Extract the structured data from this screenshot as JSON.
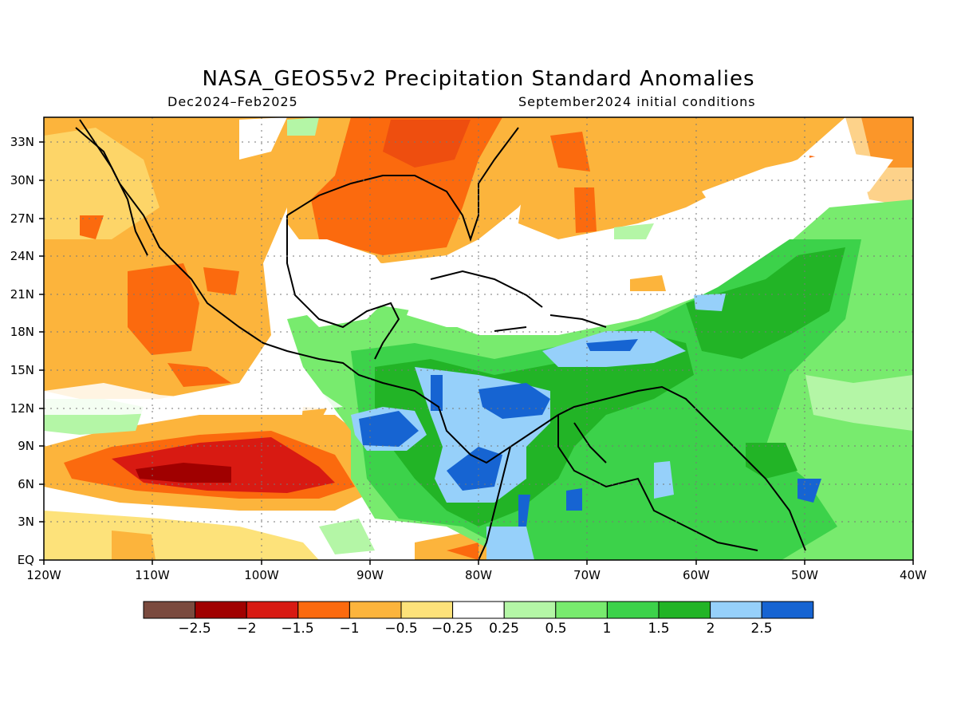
{
  "title": "NASA_GEOS5v2 Precipitation Standard Anomalies",
  "subtitle_left": "Dec2024–Feb2025",
  "subtitle_right": "September2024 initial conditions",
  "map": {
    "lon_range": [
      -120,
      -40
    ],
    "lat_range": [
      0,
      35
    ],
    "x_ticks": [
      "120W",
      "110W",
      "100W",
      "90W",
      "80W",
      "70W",
      "60W",
      "50W",
      "40W"
    ],
    "y_ticks": [
      "EQ",
      "3N",
      "6N",
      "9N",
      "12N",
      "15N",
      "18N",
      "21N",
      "24N",
      "27N",
      "30N",
      "33N"
    ]
  },
  "colorbar": {
    "colors": [
      "#7a4a3e",
      "#a00000",
      "#d81a12",
      "#fb6a0e",
      "#fcb43c",
      "#fde27a",
      "#ffffff",
      "#b4f6a6",
      "#78eb6e",
      "#3cd24a",
      "#22b426",
      "#96d0fa",
      "#1664d2"
    ],
    "labels": [
      "−2.5",
      "−2",
      "−1.5",
      "−1",
      "−0.5",
      "−0.25",
      "0.25",
      "0.5",
      "1",
      "1.5",
      "2",
      "2.5"
    ]
  }
}
